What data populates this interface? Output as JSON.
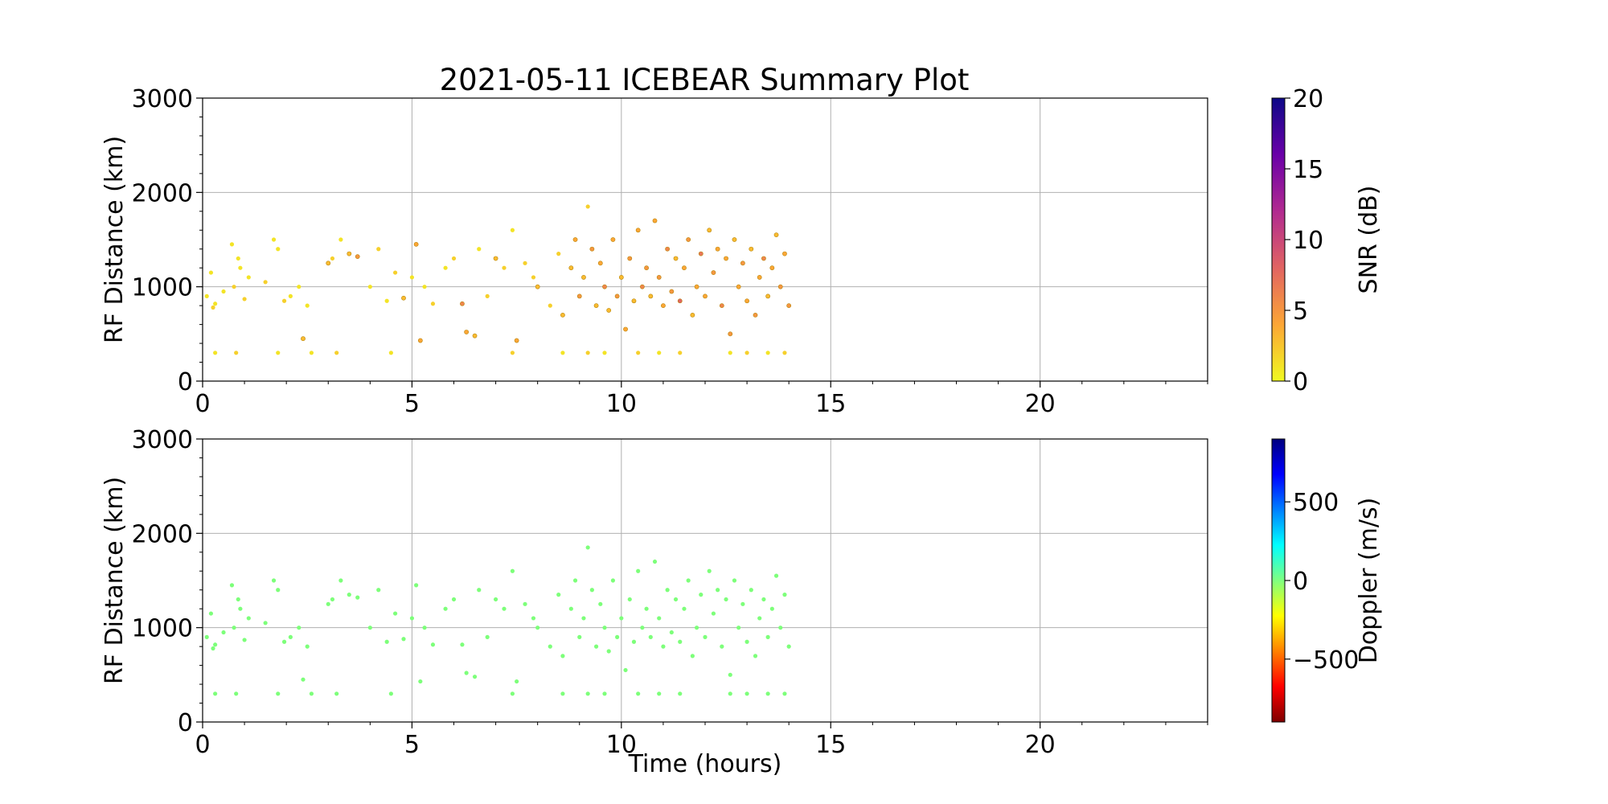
{
  "figure": {
    "title": "2021-05-11 ICEBEAR Summary Plot"
  },
  "chart_data": [
    {
      "type": "scatter",
      "title": "2021-05-11 ICEBEAR Summary Plot",
      "xlabel": "",
      "ylabel": "RF Distance (km)",
      "xlim": [
        0,
        24
      ],
      "ylim": [
        0,
        3000
      ],
      "xticks": [
        0,
        5,
        10,
        15,
        20
      ],
      "yticks": [
        0,
        1000,
        2000,
        3000
      ],
      "grid": true,
      "colorbar": {
        "label": "SNR (dB)",
        "range": [
          0,
          20
        ],
        "ticks": [
          0,
          5,
          10,
          15,
          20
        ],
        "colormap": "plasma_r",
        "stops": [
          "#f0f921",
          "#fca636",
          "#e16462",
          "#b12a90",
          "#6a00a8",
          "#0d0887"
        ]
      },
      "x": [
        0.1,
        0.2,
        0.25,
        0.3,
        0.5,
        0.7,
        0.75,
        0.85,
        0.9,
        1.0,
        1.1,
        1.5,
        1.7,
        1.8,
        1.95,
        2.1,
        2.3,
        2.4,
        2.5,
        3.0,
        3.1,
        3.3,
        3.5,
        3.7,
        4.0,
        4.2,
        4.4,
        4.6,
        4.8,
        5.0,
        5.1,
        5.2,
        5.3,
        5.5,
        5.8,
        6.0,
        6.2,
        6.3,
        6.5,
        6.6,
        6.8,
        7.0,
        7.2,
        7.4,
        7.5,
        7.7,
        7.9,
        8.0,
        8.3,
        8.5,
        8.6,
        8.8,
        8.9,
        9.0,
        9.1,
        9.2,
        9.3,
        9.4,
        9.5,
        9.6,
        9.7,
        9.8,
        9.9,
        10.0,
        10.1,
        10.2,
        10.3,
        10.4,
        10.5,
        10.6,
        10.7,
        10.8,
        10.9,
        11.0,
        11.1,
        11.2,
        11.3,
        11.4,
        11.5,
        11.6,
        11.7,
        11.8,
        11.9,
        12.0,
        12.1,
        12.2,
        12.3,
        12.4,
        12.5,
        12.6,
        12.7,
        12.8,
        12.9,
        13.0,
        13.1,
        13.2,
        13.3,
        13.4,
        13.5,
        13.6,
        13.7,
        13.8,
        13.9,
        14.0,
        0.3,
        0.8,
        1.8,
        2.6,
        3.2,
        4.5,
        7.4,
        8.6,
        9.2,
        9.6,
        10.4,
        10.9,
        11.4,
        12.6,
        13.0,
        13.5,
        13.9
      ],
      "y": [
        900,
        1150,
        780,
        820,
        950,
        1450,
        1000,
        1300,
        1200,
        870,
        1100,
        1050,
        1500,
        1400,
        850,
        900,
        1000,
        450,
        800,
        1250,
        1300,
        1500,
        1350,
        1320,
        1000,
        1400,
        850,
        1150,
        880,
        1100,
        1450,
        430,
        1000,
        820,
        1200,
        1300,
        820,
        520,
        480,
        1400,
        900,
        1300,
        1200,
        1600,
        430,
        1250,
        1100,
        1000,
        800,
        1350,
        700,
        1200,
        1500,
        900,
        1100,
        1850,
        1400,
        800,
        1250,
        1000,
        750,
        1500,
        900,
        1100,
        550,
        1300,
        850,
        1600,
        1000,
        1200,
        900,
        1700,
        1100,
        800,
        1400,
        950,
        1300,
        850,
        1200,
        1500,
        700,
        1000,
        1350,
        900,
        1600,
        1150,
        1400,
        800,
        1300,
        500,
        1500,
        1000,
        1250,
        850,
        1400,
        700,
        1100,
        1300,
        900,
        1200,
        1550,
        1000,
        1350,
        800,
        300,
        300,
        300,
        300,
        300,
        300,
        300,
        300,
        300,
        300,
        300,
        300,
        300,
        300,
        300,
        300,
        300
      ],
      "snr": [
        1,
        1,
        2,
        1,
        1,
        1,
        2,
        1,
        1,
        2,
        1,
        2,
        1,
        1,
        2,
        1,
        1,
        3,
        1,
        3,
        2,
        1,
        3,
        5,
        1,
        2,
        1,
        2,
        3,
        1,
        4,
        4,
        1,
        2,
        1,
        2,
        6,
        4,
        3,
        1,
        2,
        3,
        2,
        1,
        4,
        2,
        2,
        3,
        2,
        2,
        3,
        3,
        4,
        5,
        3,
        2,
        5,
        3,
        4,
        6,
        3,
        4,
        5,
        3,
        4,
        5,
        3,
        4,
        6,
        5,
        3,
        4,
        5,
        4,
        6,
        5,
        3,
        8,
        4,
        5,
        3,
        4,
        7,
        4,
        3,
        5,
        4,
        6,
        4,
        5,
        3,
        4,
        5,
        4,
        3,
        5,
        4,
        6,
        3,
        4,
        3,
        5,
        4,
        5,
        1,
        2,
        1,
        1,
        2,
        1,
        2,
        1,
        2,
        1,
        2,
        1,
        2,
        1,
        2,
        1,
        2
      ]
    },
    {
      "type": "scatter",
      "title": "",
      "xlabel": "Time (hours)",
      "ylabel": "RF Distance (km)",
      "xlim": [
        0,
        24
      ],
      "ylim": [
        0,
        3000
      ],
      "xticks": [
        0,
        5,
        10,
        15,
        20
      ],
      "yticks": [
        0,
        1000,
        2000,
        3000
      ],
      "grid": true,
      "colorbar": {
        "label": "Doppler (m/s)",
        "range": [
          -900,
          900
        ],
        "ticks": [
          -500,
          0,
          500
        ],
        "tick_labels": [
          "−500",
          "0",
          "500"
        ],
        "colormap": "jet_r",
        "stops": [
          "#7f0000",
          "#ff0000",
          "#ff8000",
          "#ffff00",
          "#80ff80",
          "#00ffff",
          "#0080ff",
          "#0000ff",
          "#00007f"
        ]
      },
      "point_color": "#7dff7a",
      "x": [
        0.1,
        0.2,
        0.25,
        0.3,
        0.5,
        0.7,
        0.75,
        0.85,
        0.9,
        1.0,
        1.1,
        1.5,
        1.7,
        1.8,
        1.95,
        2.1,
        2.3,
        2.4,
        2.5,
        3.0,
        3.1,
        3.3,
        3.5,
        3.7,
        4.0,
        4.2,
        4.4,
        4.6,
        4.8,
        5.0,
        5.1,
        5.2,
        5.3,
        5.5,
        5.8,
        6.0,
        6.2,
        6.3,
        6.5,
        6.6,
        6.8,
        7.0,
        7.2,
        7.4,
        7.5,
        7.7,
        7.9,
        8.0,
        8.3,
        8.5,
        8.6,
        8.8,
        8.9,
        9.0,
        9.1,
        9.2,
        9.3,
        9.4,
        9.5,
        9.6,
        9.7,
        9.8,
        9.9,
        10.0,
        10.1,
        10.2,
        10.3,
        10.4,
        10.5,
        10.6,
        10.7,
        10.8,
        10.9,
        11.0,
        11.1,
        11.2,
        11.3,
        11.4,
        11.5,
        11.6,
        11.7,
        11.8,
        11.9,
        12.0,
        12.1,
        12.2,
        12.3,
        12.4,
        12.5,
        12.6,
        12.7,
        12.8,
        12.9,
        13.0,
        13.1,
        13.2,
        13.3,
        13.4,
        13.5,
        13.6,
        13.7,
        13.8,
        13.9,
        14.0,
        0.3,
        0.8,
        1.8,
        2.6,
        3.2,
        4.5,
        7.4,
        8.6,
        9.2,
        9.6,
        10.4,
        10.9,
        11.4,
        12.6,
        13.0,
        13.5,
        13.9
      ],
      "y": [
        900,
        1150,
        780,
        820,
        950,
        1450,
        1000,
        1300,
        1200,
        870,
        1100,
        1050,
        1500,
        1400,
        850,
        900,
        1000,
        450,
        800,
        1250,
        1300,
        1500,
        1350,
        1320,
        1000,
        1400,
        850,
        1150,
        880,
        1100,
        1450,
        430,
        1000,
        820,
        1200,
        1300,
        820,
        520,
        480,
        1400,
        900,
        1300,
        1200,
        1600,
        430,
        1250,
        1100,
        1000,
        800,
        1350,
        700,
        1200,
        1500,
        900,
        1100,
        1850,
        1400,
        800,
        1250,
        1000,
        750,
        1500,
        900,
        1100,
        550,
        1300,
        850,
        1600,
        1000,
        1200,
        900,
        1700,
        1100,
        800,
        1400,
        950,
        1300,
        850,
        1200,
        1500,
        700,
        1000,
        1350,
        900,
        1600,
        1150,
        1400,
        800,
        1300,
        500,
        1500,
        1000,
        1250,
        850,
        1400,
        700,
        1100,
        1300,
        900,
        1200,
        1550,
        1000,
        1350,
        800,
        300,
        300,
        300,
        300,
        300,
        300,
        300,
        300,
        300,
        300,
        300,
        300,
        300,
        300,
        300,
        300,
        300
      ]
    }
  ]
}
